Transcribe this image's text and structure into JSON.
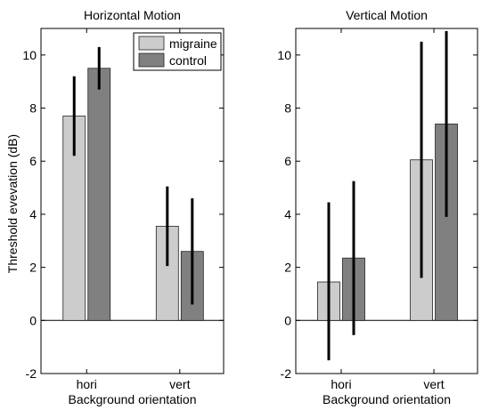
{
  "ylabel": "Threshold evevation (dB)",
  "colors": {
    "migraine": "#cccccc",
    "control": "#808080"
  },
  "legend": {
    "items": [
      {
        "label": "migraine",
        "color": "#cccccc"
      },
      {
        "label": "control",
        "color": "#808080"
      }
    ],
    "placement": "top-right of left panel"
  },
  "chart_data": [
    {
      "type": "bar",
      "title": "Horizontal Motion",
      "xlabel": "Background orientation",
      "ylabel": "Threshold evevation (dB)",
      "categories": [
        "hori",
        "vert"
      ],
      "ylim": [
        -2,
        11
      ],
      "yticks": [
        -2,
        0,
        2,
        4,
        6,
        8,
        10
      ],
      "series": [
        {
          "name": "migraine",
          "values": [
            7.7,
            3.55
          ],
          "err_low": [
            6.2,
            2.05
          ],
          "err_high": [
            9.2,
            5.05
          ]
        },
        {
          "name": "control",
          "values": [
            9.5,
            2.6
          ],
          "err_low": [
            8.7,
            0.6
          ],
          "err_high": [
            10.3,
            4.6
          ]
        }
      ]
    },
    {
      "type": "bar",
      "title": "Vertical Motion",
      "xlabel": "Background orientation",
      "ylabel": "",
      "categories": [
        "hori",
        "vert"
      ],
      "ylim": [
        -2,
        11
      ],
      "yticks": [
        -2,
        0,
        2,
        4,
        6,
        8,
        10
      ],
      "series": [
        {
          "name": "migraine",
          "values": [
            1.45,
            6.05
          ],
          "err_low": [
            -1.5,
            1.6
          ],
          "err_high": [
            4.45,
            10.5
          ]
        },
        {
          "name": "control",
          "values": [
            2.35,
            7.4
          ],
          "err_low": [
            -0.55,
            3.9
          ],
          "err_high": [
            5.25,
            10.9
          ]
        }
      ]
    }
  ]
}
